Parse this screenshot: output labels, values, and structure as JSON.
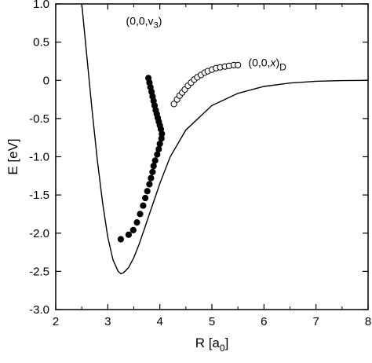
{
  "chart_data": {
    "type": "line",
    "xlabel_main": "R [a",
    "xlabel_sub": "0",
    "xlabel_tail": "]",
    "ylabel": "E [eV]",
    "xlim": [
      2,
      8
    ],
    "ylim": [
      -3.0,
      1.0
    ],
    "grid": false,
    "x_ticks": [
      2,
      3,
      4,
      5,
      6,
      7,
      8
    ],
    "x_tick_labels": [
      "2",
      "3",
      "4",
      "5",
      "6",
      "7",
      "8"
    ],
    "y_ticks": [
      1.0,
      0.5,
      0,
      -0.5,
      -1.0,
      -1.5,
      -2.0,
      -2.5,
      -3.0
    ],
    "y_tick_labels": [
      "1.0",
      "0.5",
      "0",
      "-0.5",
      "-1.0",
      "-1.5",
      "-2.0",
      "-2.5",
      "-3.0"
    ],
    "annotations": {
      "v3": {
        "main": "(0,0,v",
        "sub": "3",
        "tail": ")",
        "x": 3.35,
        "y": 0.73
      },
      "xD": {
        "main": "(0,0,",
        "italic": "x",
        "close": ")",
        "sub": "D",
        "x": 5.7,
        "y": 0.18
      }
    },
    "series": [
      {
        "style": "curve",
        "points": [
          [
            2.5,
            1.0
          ],
          [
            2.6,
            0.3
          ],
          [
            2.7,
            -0.4
          ],
          [
            2.8,
            -1.05
          ],
          [
            2.9,
            -1.6
          ],
          [
            3.0,
            -2.05
          ],
          [
            3.1,
            -2.35
          ],
          [
            3.2,
            -2.5
          ],
          [
            3.25,
            -2.53
          ],
          [
            3.3,
            -2.52
          ],
          [
            3.4,
            -2.45
          ],
          [
            3.5,
            -2.32
          ],
          [
            3.6,
            -2.15
          ],
          [
            3.7,
            -1.95
          ],
          [
            3.8,
            -1.75
          ],
          [
            4.0,
            -1.35
          ],
          [
            4.2,
            -1.0
          ],
          [
            4.5,
            -0.65
          ],
          [
            5.0,
            -0.33
          ],
          [
            5.5,
            -0.17
          ],
          [
            6.0,
            -0.08
          ],
          [
            6.5,
            -0.035
          ],
          [
            7.0,
            -0.012
          ],
          [
            7.5,
            -0.004
          ],
          [
            8.0,
            0.0
          ]
        ]
      },
      {
        "style": "filled-markers",
        "points": [
          [
            3.78,
            0.03
          ],
          [
            3.8,
            -0.03
          ],
          [
            3.82,
            -0.09
          ],
          [
            3.84,
            -0.15
          ],
          [
            3.86,
            -0.21
          ],
          [
            3.88,
            -0.27
          ],
          [
            3.9,
            -0.33
          ],
          [
            3.92,
            -0.39
          ],
          [
            3.94,
            -0.44
          ],
          [
            3.96,
            -0.49
          ],
          [
            3.98,
            -0.54
          ],
          [
            4.0,
            -0.59
          ],
          [
            4.02,
            -0.64
          ],
          [
            4.04,
            -0.7
          ],
          [
            4.03,
            -0.76
          ],
          [
            4.0,
            -0.83
          ],
          [
            3.98,
            -0.9
          ],
          [
            3.95,
            -0.97
          ],
          [
            3.91,
            -1.05
          ],
          [
            3.88,
            -1.12
          ],
          [
            3.86,
            -1.2
          ],
          [
            3.83,
            -1.28
          ],
          [
            3.8,
            -1.36
          ],
          [
            3.76,
            -1.45
          ],
          [
            3.72,
            -1.54
          ],
          [
            3.68,
            -1.64
          ],
          [
            3.62,
            -1.75
          ],
          [
            3.56,
            -1.86
          ],
          [
            3.49,
            -1.96
          ],
          [
            3.4,
            -2.02
          ],
          [
            3.25,
            -2.08
          ]
        ]
      },
      {
        "style": "open-markers",
        "points": [
          [
            4.27,
            -0.31
          ],
          [
            4.33,
            -0.25
          ],
          [
            4.38,
            -0.2
          ],
          [
            4.43,
            -0.16
          ],
          [
            4.48,
            -0.12
          ],
          [
            4.54,
            -0.07
          ],
          [
            4.6,
            -0.03
          ],
          [
            4.66,
            0.01
          ],
          [
            4.72,
            0.04
          ],
          [
            4.79,
            0.07
          ],
          [
            4.86,
            0.1
          ],
          [
            4.92,
            0.12
          ],
          [
            5.0,
            0.14
          ],
          [
            5.08,
            0.16
          ],
          [
            5.16,
            0.17
          ],
          [
            5.25,
            0.18
          ],
          [
            5.33,
            0.19
          ],
          [
            5.42,
            0.2
          ],
          [
            5.5,
            0.2
          ]
        ]
      }
    ]
  }
}
